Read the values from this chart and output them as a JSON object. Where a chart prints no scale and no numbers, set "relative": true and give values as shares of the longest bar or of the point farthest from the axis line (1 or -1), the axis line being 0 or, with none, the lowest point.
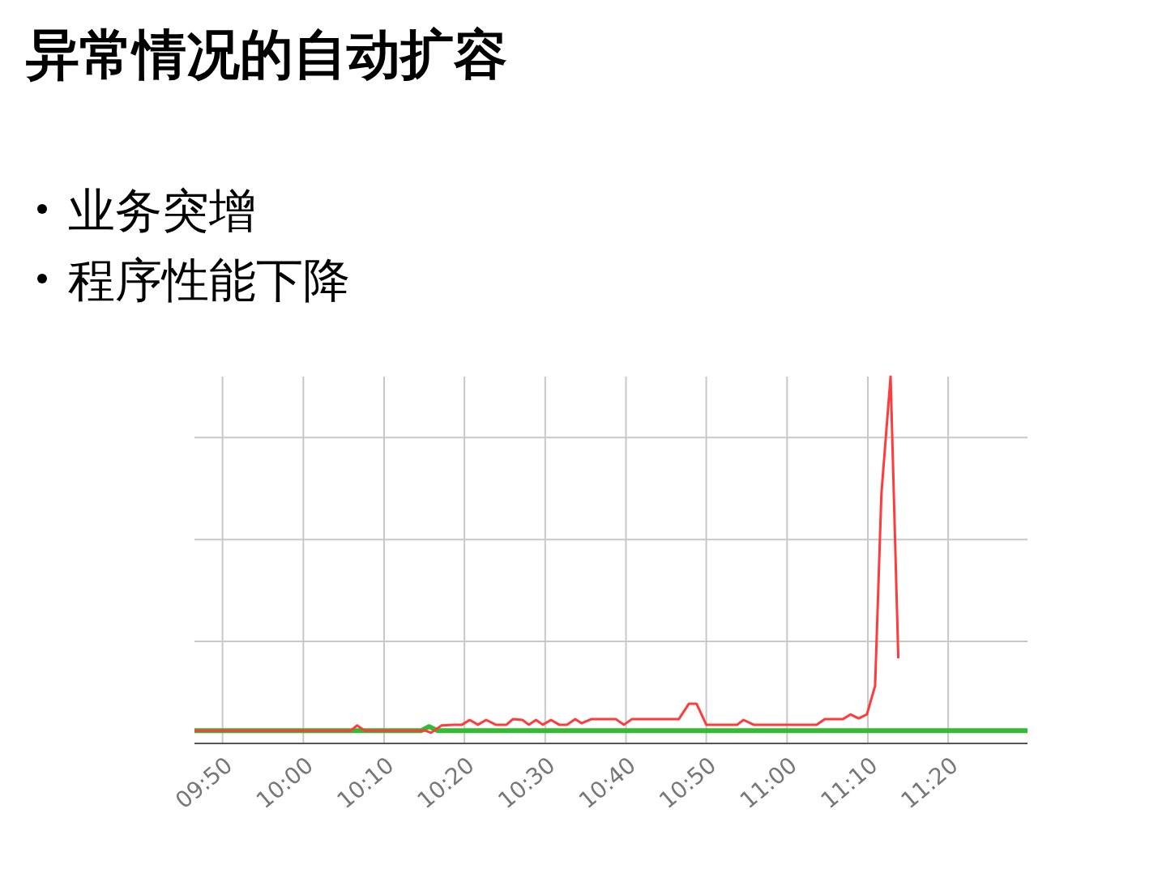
{
  "chart_data": {
    "type": "line",
    "title": "异常情况的自动扩容",
    "annotations": [
      "业务突增",
      "程序性能下降"
    ],
    "relative": true,
    "grid": true,
    "line_style": "solid",
    "xlim": [
      9.775,
      11.497
    ],
    "xticks": [
      {
        "value": 9.833,
        "label": "09:50"
      },
      {
        "value": 10,
        "label": "10:00"
      },
      {
        "value": 10.167,
        "label": "10:10"
      },
      {
        "value": 10.333,
        "label": "10:20"
      },
      {
        "value": 10.5,
        "label": "10:30"
      },
      {
        "value": 10.667,
        "label": "10:40"
      },
      {
        "value": 10.833,
        "label": "10:50"
      },
      {
        "value": 11,
        "label": "11:00"
      },
      {
        "value": 11.167,
        "label": "11:10"
      },
      {
        "value": 11.333,
        "label": "11:20"
      }
    ],
    "series": [
      {
        "color": "#33bb33",
        "x": [
          9.775,
          10.244,
          10.26,
          10.277,
          11.497
        ],
        "values": [
          0.035,
          0.035,
          0.046,
          0.035,
          0.035
        ]
      },
      {
        "color": "#ff3b3b",
        "x": [
          9.775,
          10.098,
          10.111,
          10.127,
          10.252,
          10.264,
          10.286,
          10.311,
          10.328,
          10.344,
          10.361,
          10.378,
          10.398,
          10.42,
          10.433,
          10.453,
          10.466,
          10.481,
          10.495,
          10.512,
          10.529,
          10.545,
          10.562,
          10.575,
          10.595,
          10.646,
          10.663,
          10.679,
          10.776,
          10.797,
          10.813,
          10.833,
          10.897,
          10.91,
          10.931,
          11.061,
          11.078,
          11.115,
          11.131,
          11.148,
          11.165,
          11.182,
          11.195,
          11.214,
          11.23
        ],
        "values": [
          0.035,
          0.035,
          0.049,
          0.035,
          0.035,
          0.029,
          0.049,
          0.051,
          0.051,
          0.064,
          0.051,
          0.064,
          0.051,
          0.051,
          0.066,
          0.064,
          0.051,
          0.064,
          0.051,
          0.064,
          0.051,
          0.051,
          0.066,
          0.055,
          0.066,
          0.066,
          0.051,
          0.066,
          0.066,
          0.108,
          0.108,
          0.051,
          0.051,
          0.064,
          0.051,
          0.051,
          0.066,
          0.066,
          0.079,
          0.068,
          0.079,
          0.157,
          0.68,
          1,
          0.232
        ]
      }
    ]
  }
}
